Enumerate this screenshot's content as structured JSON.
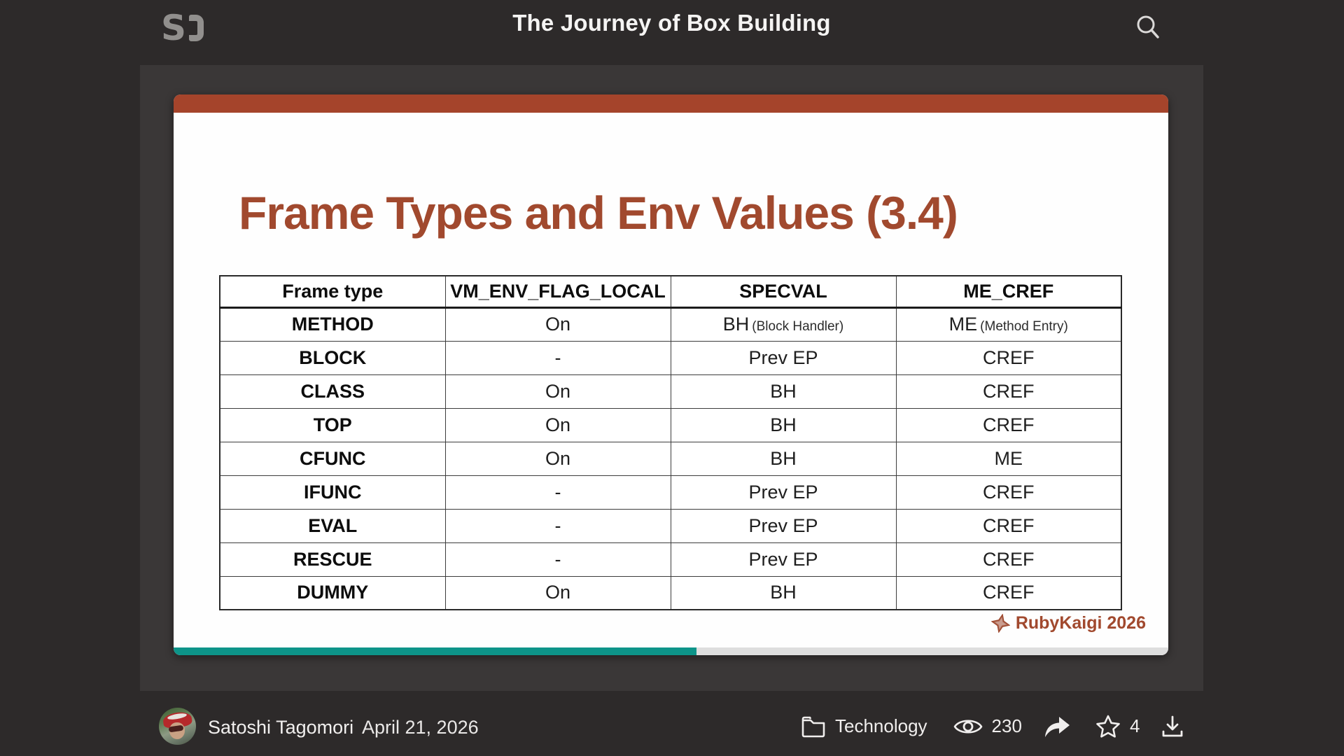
{
  "header": {
    "logo": "S",
    "logo_name": "speakerdeck-logo",
    "title": "The Journey of Box Building",
    "search_icon": "magnifier"
  },
  "slide": {
    "title": "Frame Types and Env Values (3.4)",
    "brand": "RubyKaigi 2026",
    "brand_icon": "rubykaigi-origami-star",
    "progress_percent": 52.6,
    "table": {
      "columns": [
        "Frame type",
        "VM_ENV_FLAG_LOCAL",
        "SPECVAL",
        "ME_CREF"
      ],
      "rows": [
        {
          "frame_type": "METHOD",
          "vm_env_flag_local": "On",
          "specval": "BH",
          "specval_note": "(Block Handler)",
          "me_cref": "ME",
          "me_cref_note": "(Method Entry)"
        },
        {
          "frame_type": "BLOCK",
          "vm_env_flag_local": "-",
          "specval": "Prev EP",
          "me_cref": "CREF"
        },
        {
          "frame_type": "CLASS",
          "vm_env_flag_local": "On",
          "specval": "BH",
          "me_cref": "CREF"
        },
        {
          "frame_type": "TOP",
          "vm_env_flag_local": "On",
          "specval": "BH",
          "me_cref": "CREF"
        },
        {
          "frame_type": "CFUNC",
          "vm_env_flag_local": "On",
          "specval": "BH",
          "me_cref": "ME"
        },
        {
          "frame_type": "IFUNC",
          "vm_env_flag_local": "-",
          "specval": "Prev EP",
          "me_cref": "CREF"
        },
        {
          "frame_type": "EVAL",
          "vm_env_flag_local": "-",
          "specval": "Prev EP",
          "me_cref": "CREF"
        },
        {
          "frame_type": "RESCUE",
          "vm_env_flag_local": "-",
          "specval": "Prev EP",
          "me_cref": "CREF"
        },
        {
          "frame_type": "DUMMY",
          "vm_env_flag_local": "On",
          "specval": "BH",
          "me_cref": "CREF"
        }
      ]
    }
  },
  "footer": {
    "author": "Satoshi Tagomori",
    "date": "April 21, 2026",
    "category": "Technology",
    "category_icon": "folder",
    "views": "230",
    "views_icon": "eye",
    "share_icon": "share-arrow",
    "stars": "4",
    "star_icon": "star-outline",
    "download_icon": "download-tray"
  },
  "colors": {
    "page_bg": "#2d2a2a",
    "stage_bg": "#3a3737",
    "slide_bg": "#fefefe",
    "accent_red": "#a5442b",
    "title_red": "#a1492e",
    "progress_teal": "#0d9489",
    "progress_track": "#dedede",
    "header_text": "#f5f4f3",
    "logo_gray": "#918f8d"
  }
}
